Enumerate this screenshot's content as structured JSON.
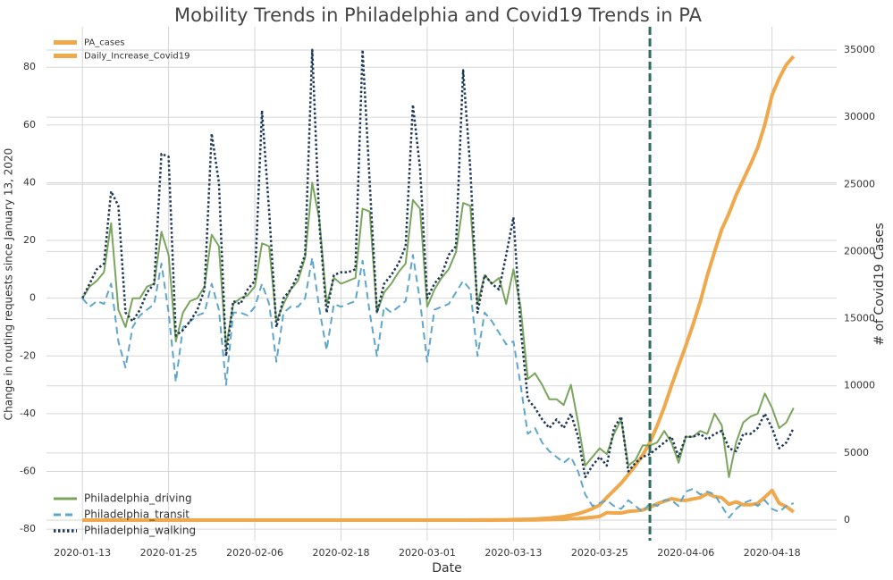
{
  "chart_data": {
    "type": "line",
    "title": "Mobility Trends in Philadelphia and Covid19 Trends in PA",
    "x_label": "Date",
    "y_label": "Change in routing requests since January 13, 2020",
    "y2_label": "# of Covid19 Cases",
    "x": [
      "2020-01-13",
      "2020-01-14",
      "2020-01-15",
      "2020-01-16",
      "2020-01-17",
      "2020-01-18",
      "2020-01-19",
      "2020-01-20",
      "2020-01-21",
      "2020-01-22",
      "2020-01-23",
      "2020-01-24",
      "2020-01-25",
      "2020-01-26",
      "2020-01-27",
      "2020-01-28",
      "2020-01-29",
      "2020-01-30",
      "2020-01-31",
      "2020-02-01",
      "2020-02-02",
      "2020-02-03",
      "2020-02-04",
      "2020-02-05",
      "2020-02-06",
      "2020-02-07",
      "2020-02-08",
      "2020-02-09",
      "2020-02-10",
      "2020-02-11",
      "2020-02-12",
      "2020-02-13",
      "2020-02-14",
      "2020-02-15",
      "2020-02-16",
      "2020-02-17",
      "2020-02-18",
      "2020-02-19",
      "2020-02-20",
      "2020-02-21",
      "2020-02-22",
      "2020-02-23",
      "2020-02-24",
      "2020-02-25",
      "2020-02-26",
      "2020-02-27",
      "2020-02-28",
      "2020-02-29",
      "2020-03-01",
      "2020-03-02",
      "2020-03-03",
      "2020-03-04",
      "2020-03-05",
      "2020-03-06",
      "2020-03-07",
      "2020-03-08",
      "2020-03-09",
      "2020-03-10",
      "2020-03-11",
      "2020-03-12",
      "2020-03-13",
      "2020-03-14",
      "2020-03-15",
      "2020-03-16",
      "2020-03-17",
      "2020-03-18",
      "2020-03-19",
      "2020-03-20",
      "2020-03-21",
      "2020-03-22",
      "2020-03-23",
      "2020-03-24",
      "2020-03-25",
      "2020-03-26",
      "2020-03-27",
      "2020-03-28",
      "2020-03-29",
      "2020-03-30",
      "2020-03-31",
      "2020-04-01",
      "2020-04-02",
      "2020-04-03",
      "2020-04-04",
      "2020-04-05",
      "2020-04-06",
      "2020-04-07",
      "2020-04-08",
      "2020-04-09",
      "2020-04-10",
      "2020-04-11",
      "2020-04-12",
      "2020-04-13",
      "2020-04-14",
      "2020-04-15",
      "2020-04-16",
      "2020-04-17",
      "2020-04-18",
      "2020-04-19",
      "2020-04-20",
      "2020-04-21"
    ],
    "xlim": [
      "2020-01-08",
      "2020-04-27"
    ],
    "xticks": [
      "2020-01-13",
      "2020-01-25",
      "2020-02-06",
      "2020-02-18",
      "2020-03-01",
      "2020-03-13",
      "2020-03-25",
      "2020-04-06",
      "2020-04-18"
    ],
    "ylim": [
      -84,
      94
    ],
    "yticks": [
      -80,
      -60,
      -40,
      -20,
      0,
      20,
      40,
      60,
      80
    ],
    "y2lim": [
      -1530,
      36730
    ],
    "y2ticks": [
      0,
      5000,
      10000,
      15000,
      20000,
      25000,
      30000,
      35000
    ],
    "grid": true,
    "vlines": [
      "2020-04-01"
    ],
    "vline_color": "#2f6d5f",
    "legend_y2": "upper left",
    "legend_y": "lower left",
    "series": [
      {
        "name": "PA_cases",
        "axis": "y2",
        "color": "#f0a84c",
        "style": "solid",
        "width": 4,
        "values": [
          0,
          0,
          0,
          0,
          0,
          0,
          0,
          0,
          0,
          0,
          0,
          0,
          0,
          0,
          0,
          0,
          0,
          0,
          0,
          0,
          0,
          0,
          0,
          0,
          0,
          0,
          0,
          0,
          0,
          0,
          0,
          0,
          0,
          0,
          0,
          0,
          0,
          0,
          0,
          0,
          0,
          0,
          0,
          0,
          0,
          0,
          0,
          0,
          0,
          0,
          0,
          0,
          0,
          2,
          4,
          6,
          10,
          12,
          16,
          22,
          41,
          47,
          63,
          77,
          112,
          152,
          206,
          268,
          371,
          479,
          644,
          851,
          1127,
          1687,
          2218,
          2751,
          3394,
          4087,
          4843,
          5805,
          7016,
          8420,
          10017,
          11510,
          12980,
          14559,
          16239,
          18228,
          19979,
          21655,
          22833,
          24199,
          25345,
          26490,
          27735,
          29441,
          31652,
          32902,
          33914,
          34528
        ]
      },
      {
        "name": "Daily_Increase_Covid19",
        "axis": "y2",
        "color": "#f0a84c",
        "style": "solid",
        "width": 4,
        "values": [
          0,
          0,
          0,
          0,
          0,
          0,
          0,
          0,
          0,
          0,
          0,
          0,
          0,
          0,
          0,
          0,
          0,
          0,
          0,
          0,
          0,
          0,
          0,
          0,
          0,
          0,
          0,
          0,
          0,
          0,
          0,
          0,
          0,
          0,
          0,
          0,
          0,
          0,
          0,
          0,
          0,
          0,
          0,
          0,
          0,
          0,
          0,
          0,
          0,
          0,
          0,
          0,
          0,
          2,
          2,
          2,
          4,
          2,
          4,
          6,
          19,
          6,
          16,
          14,
          35,
          40,
          54,
          62,
          103,
          108,
          165,
          207,
          276,
          560,
          531,
          533,
          643,
          693,
          756,
          962,
          1211,
          1404,
          1597,
          1493,
          1470,
          1579,
          1680,
          1989,
          1751,
          1676,
          1178,
          1366,
          1146,
          1145,
          1245,
          1706,
          2211,
          1250,
          1012,
          614
        ]
      },
      {
        "name": "Philadelphia_driving",
        "axis": "y",
        "color": "#7aa55c",
        "style": "solid",
        "width": 2,
        "values": [
          0,
          4,
          6,
          9,
          26,
          -4,
          -10,
          0,
          0,
          4,
          5,
          23,
          15,
          -15,
          -5,
          -1,
          0,
          4,
          22,
          18,
          -17,
          -2,
          0,
          1,
          4,
          19,
          18,
          -8,
          -2,
          3,
          6,
          14,
          40,
          27,
          -2,
          7,
          5,
          6,
          7,
          31,
          30,
          -5,
          2,
          5,
          9,
          12,
          34,
          31,
          -3,
          3,
          7,
          10,
          16,
          33,
          32,
          -2,
          8,
          5,
          7,
          -2,
          10,
          -3,
          -28,
          -26,
          -30,
          -35,
          -35,
          -37,
          -30,
          -43,
          -58,
          -55,
          -52,
          -54,
          -47,
          -42,
          -58,
          -56,
          -51,
          -51,
          -50,
          -46,
          -50,
          -57,
          -48,
          -48,
          -46,
          -47,
          -40,
          -44,
          -62,
          -50,
          -43,
          -41,
          -40,
          -33,
          -38,
          -45,
          -43,
          -38
        ]
      },
      {
        "name": "Philadelphia_transit",
        "axis": "y",
        "color": "#5ea6cc",
        "style": "dashed",
        "width": 2,
        "values": [
          0,
          -3,
          -1,
          -2,
          5,
          -15,
          -24,
          -10,
          -6,
          -4,
          -2,
          12,
          -5,
          -29,
          -10,
          -8,
          -6,
          -5,
          5,
          -4,
          -30,
          -5,
          -5,
          -6,
          -3,
          5,
          -2,
          -22,
          -5,
          -3,
          -3,
          0,
          14,
          -4,
          -18,
          -2,
          -3,
          -2,
          -1,
          13,
          -5,
          -20,
          -3,
          -5,
          -3,
          -1,
          15,
          -1,
          -22,
          -4,
          -3,
          -2,
          2,
          6,
          3,
          -20,
          -5,
          -8,
          -12,
          -16,
          -15,
          -30,
          -47,
          -45,
          -50,
          -53,
          -55,
          -57,
          -55,
          -60,
          -68,
          -72,
          -71,
          -70,
          -72,
          -73,
          -70,
          -72,
          -74,
          -71,
          -72,
          -70,
          -70,
          -72,
          -67,
          -66,
          -68,
          -67,
          -68,
          -72,
          -76,
          -73,
          -71,
          -70,
          -72,
          -70,
          -73,
          -74,
          -72,
          -71
        ]
      },
      {
        "name": "Philadelphia_walking",
        "axis": "y",
        "color": "#1f3a58",
        "style": "dotted",
        "width": 2.5,
        "values": [
          0,
          5,
          10,
          12,
          37,
          32,
          -5,
          -8,
          -4,
          2,
          5,
          50,
          49,
          -13,
          -11,
          -8,
          -4,
          3,
          57,
          40,
          -20,
          -1,
          -2,
          3,
          6,
          65,
          30,
          -10,
          0,
          3,
          8,
          15,
          86,
          25,
          -5,
          8,
          9,
          9,
          10,
          86,
          40,
          -5,
          5,
          8,
          12,
          18,
          67,
          45,
          0,
          5,
          8,
          15,
          18,
          79,
          45,
          -5,
          8,
          5,
          3,
          15,
          28,
          -10,
          -35,
          -38,
          -42,
          -45,
          -42,
          -45,
          -40,
          -48,
          -62,
          -58,
          -55,
          -58,
          -45,
          -41,
          -60,
          -57,
          -55,
          -54,
          -52,
          -50,
          -48,
          -55,
          -48,
          -48,
          -47,
          -49,
          -47,
          -46,
          -52,
          -53,
          -47,
          -47,
          -45,
          -40,
          -45,
          -52,
          -50,
          -45
        ]
      }
    ]
  }
}
